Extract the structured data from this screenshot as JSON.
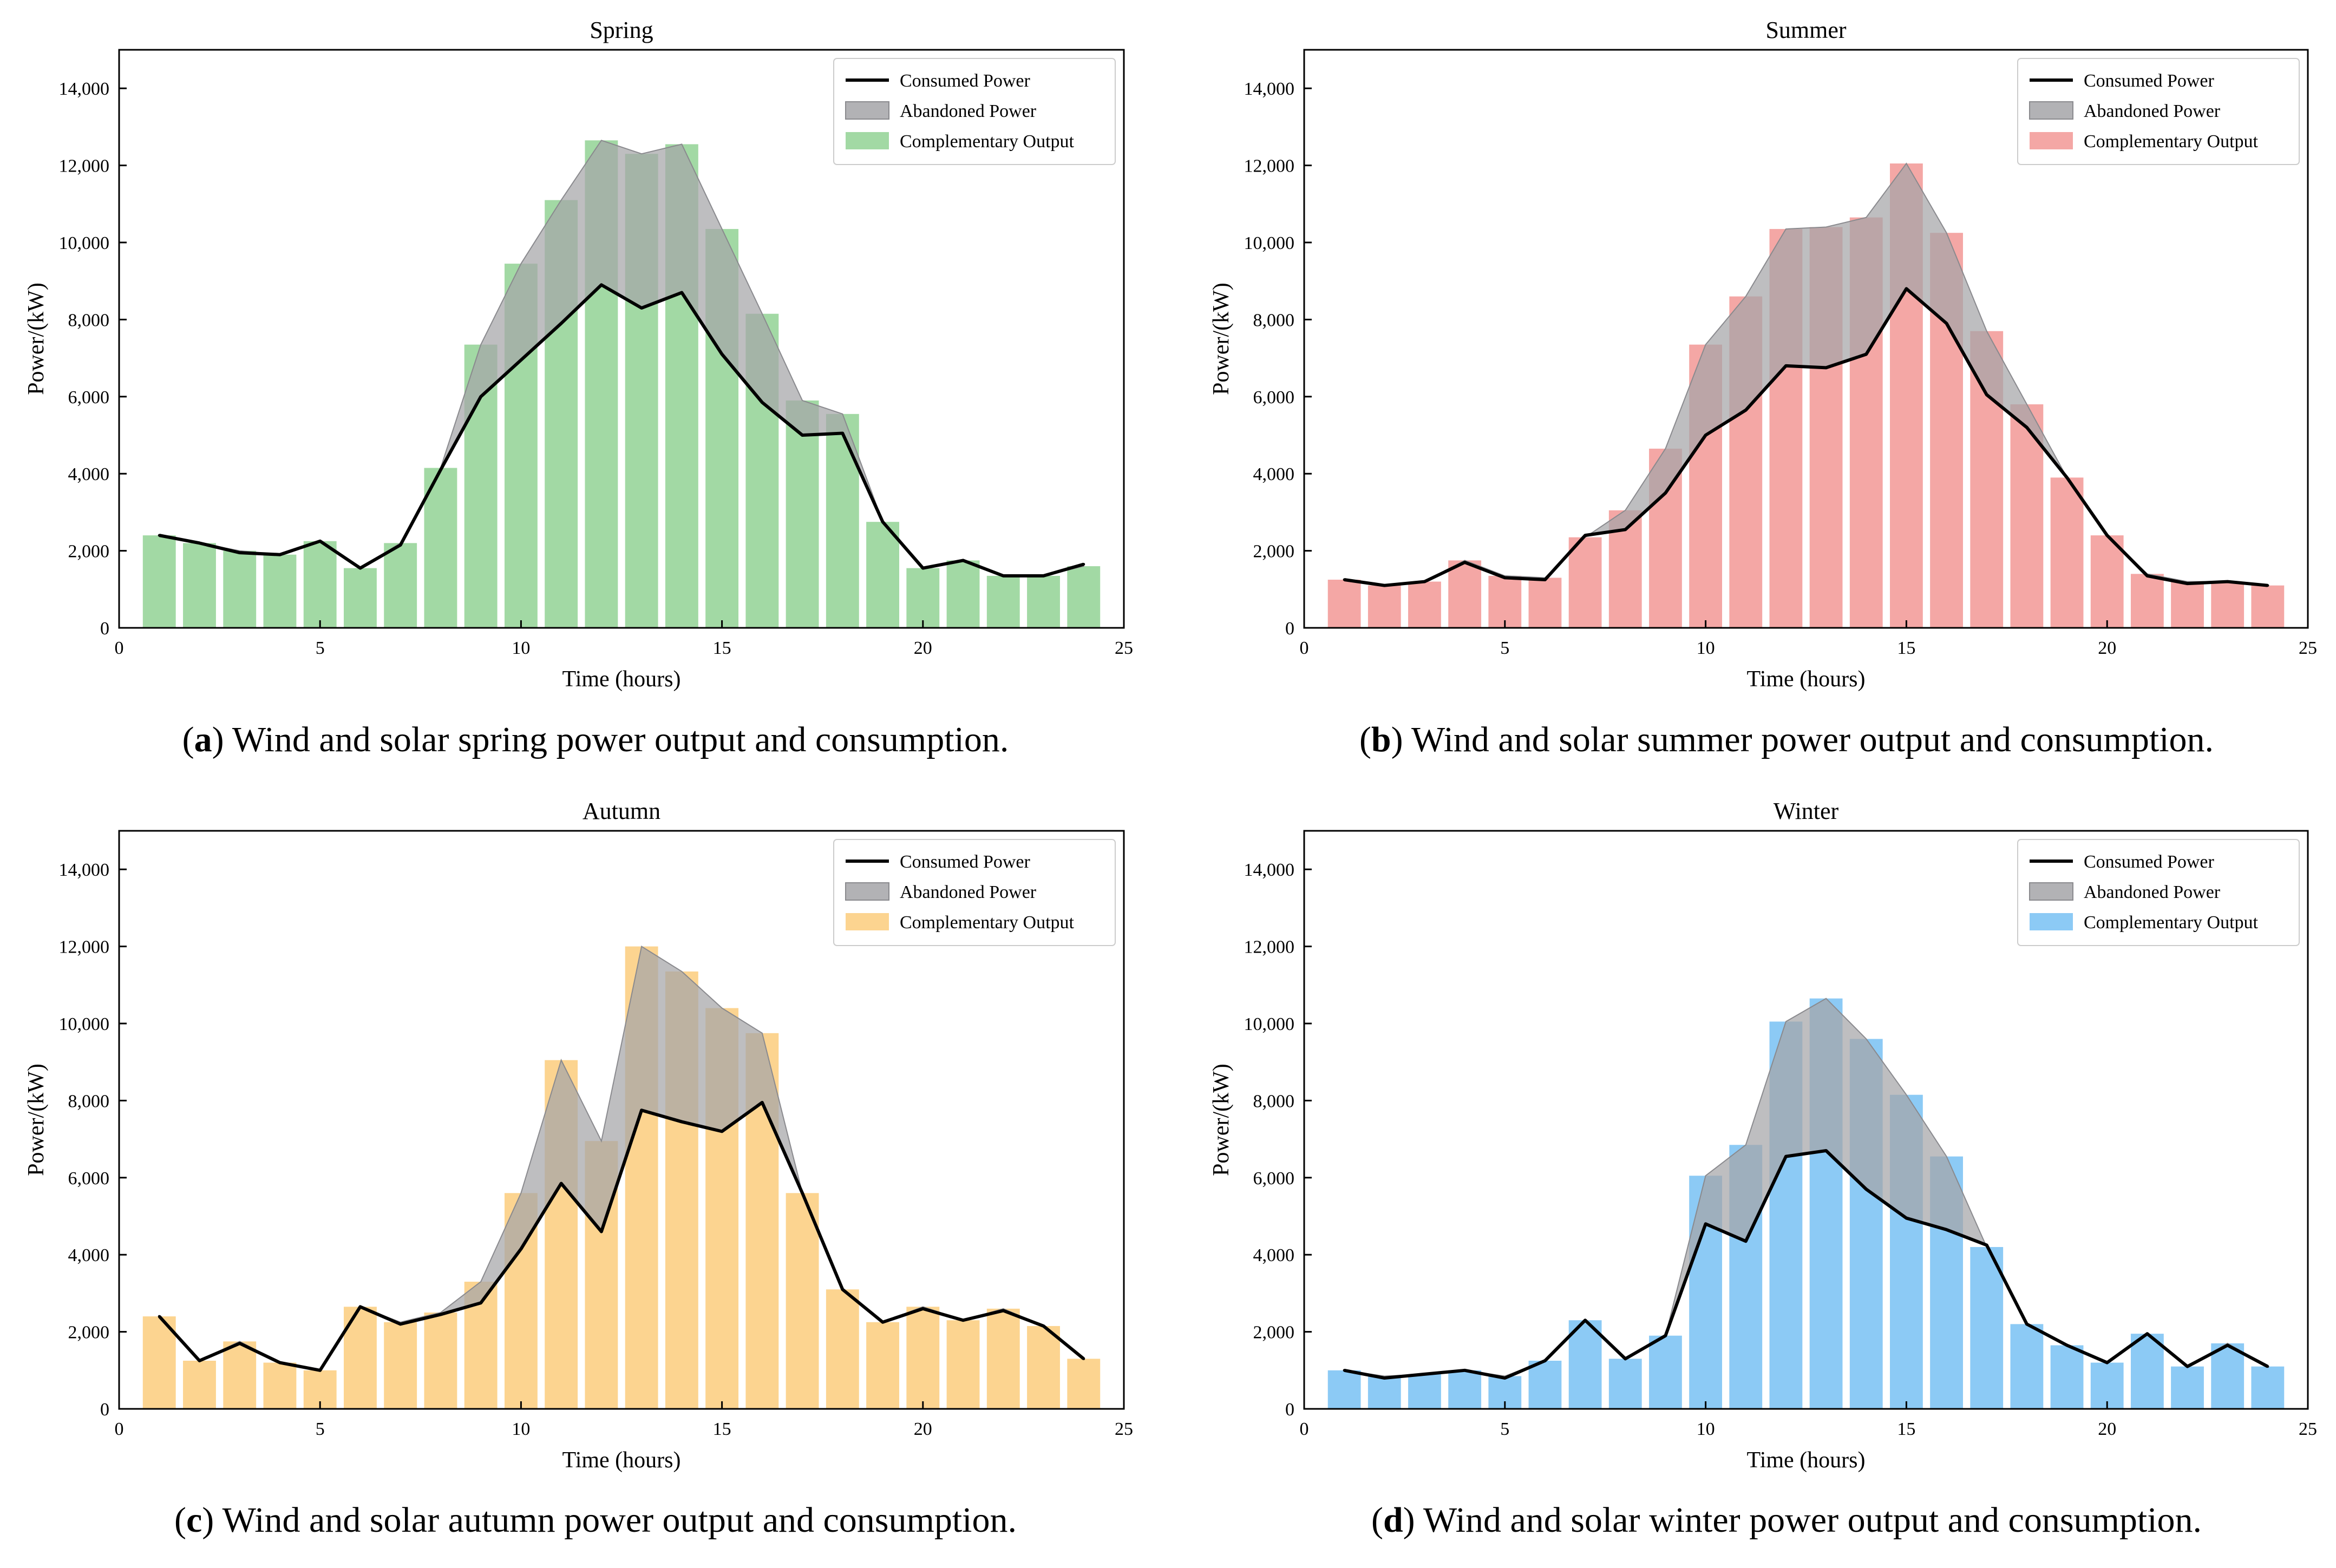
{
  "figure": {
    "captions": [
      {
        "letter": "a",
        "text": "Wind and solar spring power output and consumption."
      },
      {
        "letter": "b",
        "text": "Wind and solar summer power output and consumption."
      },
      {
        "letter": "c",
        "text": "Wind and solar autumn power output and consumption."
      },
      {
        "letter": "d",
        "text": "Wind and solar winter power output and consumption."
      }
    ]
  },
  "chart_data": [
    {
      "type": "bar",
      "title": "Spring",
      "xlabel": "Time (hours)",
      "ylabel": "Power/(kW)",
      "xlim": [
        0,
        25
      ],
      "ylim": [
        0,
        15000
      ],
      "xticks": [
        0,
        5,
        10,
        15,
        20,
        25
      ],
      "yticks": [
        0,
        2000,
        4000,
        6000,
        8000,
        10000,
        12000,
        14000
      ],
      "ytick_labels": [
        "0",
        "2,000",
        "4,000",
        "6,000",
        "8,000",
        "10,000",
        "12,000",
        "14,000"
      ],
      "legend": {
        "position": "top-right",
        "entries": [
          "Consumed Power",
          "Abandoned Power",
          "Complementary Output"
        ]
      },
      "colors": {
        "bar": "#a2d9a4",
        "abandoned": "#a5a5a8",
        "line": "#000000"
      },
      "x": [
        1,
        2,
        3,
        4,
        5,
        6,
        7,
        8,
        9,
        10,
        11,
        12,
        13,
        14,
        15,
        16,
        17,
        18,
        19,
        20,
        21,
        22,
        23,
        24
      ],
      "series": [
        {
          "name": "Complementary Output",
          "kind": "bar",
          "values": [
            2400,
            2200,
            2000,
            1900,
            2250,
            1550,
            2200,
            4150,
            7350,
            9450,
            11100,
            12650,
            12300,
            12550,
            10350,
            8150,
            5900,
            5550,
            2750,
            1550,
            1750,
            1350,
            1350,
            1600
          ]
        },
        {
          "name": "Consumed Power",
          "kind": "line",
          "values": [
            2400,
            2200,
            1950,
            1900,
            2250,
            1550,
            2150,
            4100,
            6000,
            6950,
            7900,
            8900,
            8300,
            8700,
            7100,
            5850,
            5000,
            5050,
            2750,
            1550,
            1750,
            1350,
            1350,
            1650
          ]
        }
      ]
    },
    {
      "type": "bar",
      "title": "Summer",
      "xlabel": "Time (hours)",
      "ylabel": "Power/(kW)",
      "xlim": [
        0,
        25
      ],
      "ylim": [
        0,
        15000
      ],
      "xticks": [
        0,
        5,
        10,
        15,
        20,
        25
      ],
      "yticks": [
        0,
        2000,
        4000,
        6000,
        8000,
        10000,
        12000,
        14000
      ],
      "ytick_labels": [
        "0",
        "2,000",
        "4,000",
        "6,000",
        "8,000",
        "10,000",
        "12,000",
        "14,000"
      ],
      "legend": {
        "position": "top-right",
        "entries": [
          "Consumed Power",
          "Abandoned Power",
          "Complementary Output"
        ]
      },
      "colors": {
        "bar": "#f4a7a5",
        "abandoned": "#a5a5a8",
        "line": "#000000"
      },
      "x": [
        1,
        2,
        3,
        4,
        5,
        6,
        7,
        8,
        9,
        10,
        11,
        12,
        13,
        14,
        15,
        16,
        17,
        18,
        19,
        20,
        21,
        22,
        23,
        24
      ],
      "series": [
        {
          "name": "Complementary Output",
          "kind": "bar",
          "values": [
            1250,
            1100,
            1200,
            1750,
            1350,
            1300,
            2350,
            3050,
            4650,
            7350,
            8600,
            10350,
            10400,
            10650,
            12050,
            10250,
            7700,
            5800,
            3900,
            2400,
            1400,
            1200,
            1200,
            1100
          ]
        },
        {
          "name": "Consumed Power",
          "kind": "line",
          "values": [
            1250,
            1100,
            1200,
            1700,
            1300,
            1250,
            2400,
            2550,
            3500,
            5000,
            5650,
            6800,
            6750,
            7100,
            8800,
            7900,
            6050,
            5200,
            3900,
            2400,
            1350,
            1150,
            1200,
            1100
          ]
        }
      ]
    },
    {
      "type": "bar",
      "title": "Autumn",
      "xlabel": "Time (hours)",
      "ylabel": "Power/(kW)",
      "xlim": [
        0,
        25
      ],
      "ylim": [
        0,
        15000
      ],
      "xticks": [
        0,
        5,
        10,
        15,
        20,
        25
      ],
      "yticks": [
        0,
        2000,
        4000,
        6000,
        8000,
        10000,
        12000,
        14000
      ],
      "ytick_labels": [
        "0",
        "2,000",
        "4,000",
        "6,000",
        "8,000",
        "10,000",
        "12,000",
        "14,000"
      ],
      "legend": {
        "position": "top-right",
        "entries": [
          "Consumed Power",
          "Abandoned Power",
          "Complementary Output"
        ]
      },
      "colors": {
        "bar": "#fcd490",
        "abandoned": "#a5a5a8",
        "line": "#000000"
      },
      "x": [
        1,
        2,
        3,
        4,
        5,
        6,
        7,
        8,
        9,
        10,
        11,
        12,
        13,
        14,
        15,
        16,
        17,
        18,
        19,
        20,
        21,
        22,
        23,
        24
      ],
      "series": [
        {
          "name": "Complementary Output",
          "kind": "bar",
          "values": [
            2400,
            1250,
            1750,
            1200,
            1000,
            2650,
            2250,
            2500,
            3300,
            5600,
            9050,
            6950,
            12000,
            11350,
            10400,
            9750,
            5600,
            3100,
            2250,
            2650,
            2300,
            2600,
            2150,
            1300
          ]
        },
        {
          "name": "Consumed Power",
          "kind": "line",
          "values": [
            2400,
            1250,
            1700,
            1200,
            1000,
            2650,
            2200,
            2450,
            2750,
            4150,
            5850,
            4600,
            7750,
            7450,
            7200,
            7950,
            5600,
            3100,
            2250,
            2600,
            2300,
            2550,
            2150,
            1300
          ]
        }
      ]
    },
    {
      "type": "bar",
      "title": "Winter",
      "xlabel": "Time (hours)",
      "ylabel": "Power/(kW)",
      "xlim": [
        0,
        25
      ],
      "ylim": [
        0,
        15000
      ],
      "xticks": [
        0,
        5,
        10,
        15,
        20,
        25
      ],
      "yticks": [
        0,
        2000,
        4000,
        6000,
        8000,
        10000,
        12000,
        14000
      ],
      "ytick_labels": [
        "0",
        "2,000",
        "4,000",
        "6,000",
        "8,000",
        "10,000",
        "12,000",
        "14,000"
      ],
      "legend": {
        "position": "top-right",
        "entries": [
          "Consumed Power",
          "Abandoned Power",
          "Complementary Output"
        ]
      },
      "colors": {
        "bar": "#8ccaf5",
        "abandoned": "#a5a5a8",
        "line": "#000000"
      },
      "x": [
        1,
        2,
        3,
        4,
        5,
        6,
        7,
        8,
        9,
        10,
        11,
        12,
        13,
        14,
        15,
        16,
        17,
        18,
        19,
        20,
        21,
        22,
        23,
        24
      ],
      "series": [
        {
          "name": "Complementary Output",
          "kind": "bar",
          "values": [
            1000,
            850,
            900,
            1000,
            850,
            1250,
            2300,
            1300,
            1900,
            6050,
            6850,
            10050,
            10650,
            9600,
            8150,
            6550,
            4200,
            2200,
            1650,
            1200,
            1950,
            1100,
            1700,
            1100
          ]
        },
        {
          "name": "Consumed Power",
          "kind": "line",
          "values": [
            1000,
            800,
            900,
            1000,
            800,
            1250,
            2300,
            1300,
            1900,
            4800,
            4350,
            6550,
            6700,
            5700,
            4950,
            4650,
            4250,
            2200,
            1650,
            1200,
            1950,
            1100,
            1650,
            1100
          ]
        }
      ]
    }
  ]
}
